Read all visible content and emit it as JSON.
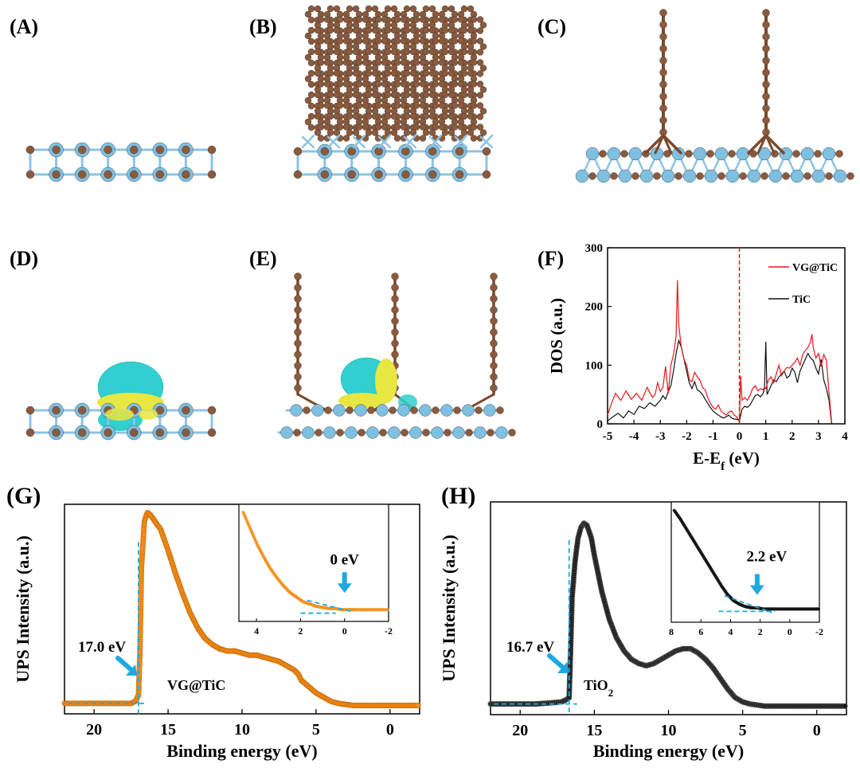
{
  "panels": {
    "A": {
      "label": "(A)"
    },
    "B": {
      "label": "(B)"
    },
    "C": {
      "label": "(C)"
    },
    "D": {
      "label": "(D)"
    },
    "E": {
      "label": "(E)"
    },
    "F": {
      "label": "(F)"
    },
    "G": {
      "label": "(G)"
    },
    "H": {
      "label": "(H)"
    }
  },
  "colors": {
    "carbon": "#8b5a3c",
    "titanium": "#7fbfe0",
    "bond_c": "#7a4a2c",
    "bond_ti": "#8cc3e6",
    "iso_cyan": "#31cfcf",
    "iso_yellow": "#e8e640",
    "red_line": "#e8161b",
    "black_line": "#111111",
    "orange": "#f7901e",
    "black_marker": "#151515",
    "cyan_dash": "#1ea8e0"
  },
  "chart_data": [
    {
      "panel": "F",
      "type": "line",
      "xlabel": "E-E",
      "xlabel_sub": "f",
      "xlabel_suffix": " (eV)",
      "ylabel": "DOS (a.u.)",
      "xlim": [
        -5,
        4
      ],
      "ylim": [
        0,
        300
      ],
      "xticks": [
        "-5",
        "-4",
        "-3",
        "-2",
        "-1",
        "0",
        "1",
        "2",
        "3",
        "4"
      ],
      "yticks": [
        "0",
        "100",
        "200",
        "300"
      ],
      "fermi_line_x": 0,
      "series": [
        {
          "name": "VG@TiC",
          "color": "#e8161b",
          "x": [
            -5,
            -4.85,
            -4.7,
            -4.5,
            -4.3,
            -4.1,
            -3.9,
            -3.7,
            -3.5,
            -3.3,
            -3.2,
            -3.1,
            -3.0,
            -2.9,
            -2.8,
            -2.7,
            -2.6,
            -2.5,
            -2.4,
            -2.35,
            -2.3,
            -2.25,
            -2.2,
            -2.1,
            -2.0,
            -1.9,
            -1.8,
            -1.7,
            -1.6,
            -1.5,
            -1.4,
            -1.3,
            -1.2,
            -1.1,
            -1.0,
            -0.9,
            -0.8,
            -0.7,
            -0.6,
            -0.5,
            -0.4,
            -0.3,
            -0.2,
            -0.1,
            0.0,
            0.05,
            0.1,
            0.2,
            0.3,
            0.4,
            0.5,
            0.6,
            0.7,
            0.8,
            0.9,
            0.95,
            1.0,
            1.1,
            1.2,
            1.3,
            1.4,
            1.5,
            1.6,
            1.7,
            1.8,
            1.9,
            2.0,
            2.1,
            2.2,
            2.3,
            2.4,
            2.5,
            2.6,
            2.7,
            2.75,
            2.8,
            2.9,
            3.0,
            3.1,
            3.2,
            3.3,
            3.4,
            3.5
          ],
          "y": [
            15,
            35,
            52,
            40,
            56,
            42,
            52,
            40,
            62,
            45,
            50,
            70,
            55,
            62,
            98,
            52,
            100,
            118,
            150,
            245,
            170,
            148,
            130,
            110,
            100,
            75,
            72,
            88,
            80,
            75,
            62,
            58,
            45,
            35,
            28,
            25,
            32,
            22,
            18,
            15,
            20,
            22,
            15,
            12,
            5,
            82,
            40,
            45,
            40,
            48,
            60,
            65,
            56,
            60,
            58,
            62,
            60,
            75,
            80,
            70,
            85,
            100,
            82,
            90,
            96,
            95,
            100,
            105,
            112,
            100,
            118,
            125,
            130,
            140,
            153,
            130,
            112,
            120,
            98,
            118,
            108,
            52,
            3
          ]
        },
        {
          "name": "TiC",
          "color": "#111111",
          "x": [
            -5,
            -4.8,
            -4.6,
            -4.4,
            -4.2,
            -4.0,
            -3.8,
            -3.6,
            -3.4,
            -3.2,
            -3.0,
            -2.9,
            -2.8,
            -2.7,
            -2.6,
            -2.5,
            -2.4,
            -2.3,
            -2.2,
            -2.1,
            -2.0,
            -1.9,
            -1.8,
            -1.7,
            -1.6,
            -1.5,
            -1.4,
            -1.3,
            -1.2,
            -1.1,
            -1.0,
            -0.9,
            -0.8,
            -0.7,
            -0.6,
            -0.5,
            -0.4,
            -0.3,
            -0.2,
            -0.1,
            0.0,
            0.1,
            0.2,
            0.3,
            0.4,
            0.5,
            0.6,
            0.7,
            0.8,
            0.9,
            0.95,
            1.0,
            1.05,
            1.1,
            1.2,
            1.3,
            1.4,
            1.5,
            1.6,
            1.7,
            1.8,
            1.9,
            2.0,
            2.1,
            2.2,
            2.3,
            2.4,
            2.5,
            2.6,
            2.7,
            2.8,
            2.9,
            3.0,
            3.1,
            3.2,
            3.3,
            3.4,
            3.5
          ],
          "y": [
            5,
            12,
            18,
            10,
            22,
            16,
            30,
            26,
            36,
            30,
            40,
            48,
            42,
            55,
            65,
            90,
            120,
            142,
            130,
            110,
            90,
            70,
            60,
            72,
            58,
            55,
            50,
            42,
            35,
            28,
            22,
            18,
            15,
            12,
            10,
            12,
            15,
            10,
            8,
            8,
            5,
            25,
            30,
            28,
            32,
            40,
            48,
            50,
            46,
            52,
            60,
            140,
            50,
            55,
            65,
            75,
            72,
            80,
            85,
            90,
            78,
            82,
            95,
            88,
            70,
            90,
            100,
            110,
            120,
            112,
            108,
            95,
            85,
            110,
            75,
            60,
            40,
            0
          ]
        }
      ],
      "legend": [
        "VG@TiC",
        "TiC"
      ]
    },
    {
      "panel": "G",
      "type": "scatter",
      "xlabel": "Binding energy (eV)",
      "ylabel": "UPS Intensity (a.u.)",
      "xlim": [
        22,
        -2
      ],
      "ylim": [
        0,
        1.0
      ],
      "xticks": [
        "20",
        "15",
        "10",
        "5",
        "0"
      ],
      "color": "#f7901e",
      "label": "VG@TiC",
      "cutoff_annotation": "17.0 eV",
      "cutoff_x": 17.0,
      "curve": {
        "x": [
          22,
          21,
          20,
          19,
          18,
          17.5,
          17.2,
          17.0,
          16.9,
          16.8,
          16.6,
          16.4,
          16.2,
          16.0,
          15.5,
          15.0,
          14.5,
          14.0,
          13.5,
          13.0,
          12.5,
          12.0,
          11.5,
          11.0,
          10.5,
          10.0,
          9.5,
          9.0,
          8.5,
          8.0,
          7.5,
          7.0,
          6.5,
          6.2,
          6.0,
          5.5,
          5.0,
          4.5,
          4.0,
          3.5,
          3.0,
          2.5,
          2.0,
          1.0,
          0.0,
          -1.0,
          -2.0
        ],
        "y": [
          0.05,
          0.05,
          0.05,
          0.05,
          0.05,
          0.05,
          0.06,
          0.09,
          0.3,
          0.7,
          0.92,
          0.96,
          0.95,
          0.93,
          0.88,
          0.78,
          0.67,
          0.57,
          0.48,
          0.41,
          0.36,
          0.33,
          0.31,
          0.3,
          0.3,
          0.29,
          0.28,
          0.28,
          0.27,
          0.26,
          0.25,
          0.23,
          0.21,
          0.19,
          0.16,
          0.13,
          0.1,
          0.08,
          0.06,
          0.05,
          0.045,
          0.04,
          0.04,
          0.04,
          0.04,
          0.04,
          0.04
        ]
      },
      "inset": {
        "annotation": "0 eV",
        "xlim": [
          4.8,
          -2
        ],
        "ylim": [
          0,
          1
        ],
        "xticks": [
          "4",
          "2",
          "0",
          "-2"
        ],
        "x": [
          4.6,
          4.3,
          4.0,
          3.7,
          3.4,
          3.1,
          2.8,
          2.5,
          2.2,
          1.9,
          1.6,
          1.3,
          1.0,
          0.7,
          0.4,
          0.1,
          -0.2,
          -0.5,
          -1.0,
          -1.5,
          -2.0
        ],
        "y": [
          0.93,
          0.8,
          0.67,
          0.56,
          0.46,
          0.38,
          0.31,
          0.25,
          0.21,
          0.17,
          0.15,
          0.13,
          0.12,
          0.11,
          0.11,
          0.1,
          0.1,
          0.1,
          0.1,
          0.1,
          0.1
        ]
      }
    },
    {
      "panel": "H",
      "type": "scatter",
      "xlabel": "Binding energy (eV)",
      "ylabel": "UPS Intensity (a.u.)",
      "xlim": [
        22,
        -2
      ],
      "ylim": [
        0,
        1.0
      ],
      "xticks": [
        "20",
        "15",
        "10",
        "5",
        "0"
      ],
      "color": "#151515",
      "label_main": "TiO",
      "label_sub": "2",
      "cutoff_annotation": "16.7 eV",
      "cutoff_x": 16.7,
      "curve": {
        "x": [
          22,
          21,
          20,
          19,
          18,
          17.2,
          16.9,
          16.7,
          16.6,
          16.5,
          16.3,
          16.1,
          15.9,
          15.7,
          15.5,
          15.2,
          15.0,
          14.5,
          14.0,
          13.5,
          13.0,
          12.5,
          12.0,
          11.5,
          11.0,
          10.5,
          10.0,
          9.5,
          9.0,
          8.5,
          8.0,
          7.5,
          7.0,
          6.5,
          6.0,
          5.5,
          5.0,
          4.5,
          4.0,
          3.5,
          3.0,
          2.0,
          1.0,
          0.0,
          -1.0,
          -2.0
        ],
        "y": [
          0.05,
          0.05,
          0.05,
          0.05,
          0.055,
          0.06,
          0.07,
          0.08,
          0.3,
          0.55,
          0.72,
          0.83,
          0.88,
          0.9,
          0.89,
          0.83,
          0.75,
          0.58,
          0.45,
          0.36,
          0.3,
          0.26,
          0.24,
          0.23,
          0.24,
          0.26,
          0.28,
          0.3,
          0.31,
          0.31,
          0.29,
          0.26,
          0.22,
          0.17,
          0.12,
          0.08,
          0.06,
          0.05,
          0.045,
          0.04,
          0.04,
          0.04,
          0.04,
          0.04,
          0.04,
          0.04
        ]
      },
      "inset": {
        "annotation": "2.2 eV",
        "xlim": [
          8,
          -2
        ],
        "ylim": [
          0,
          1
        ],
        "xticks": [
          "8",
          "6",
          "4",
          "2",
          "0",
          "-2"
        ],
        "x": [
          7.8,
          7.4,
          7.0,
          6.6,
          6.2,
          5.8,
          5.4,
          5.0,
          4.6,
          4.2,
          3.8,
          3.4,
          3.0,
          2.6,
          2.2,
          1.8,
          1.4,
          1.0,
          0.5,
          0.0,
          -0.5,
          -1.0,
          -1.5,
          -2.0
        ],
        "y": [
          0.93,
          0.86,
          0.78,
          0.7,
          0.62,
          0.54,
          0.46,
          0.38,
          0.3,
          0.23,
          0.18,
          0.15,
          0.13,
          0.12,
          0.12,
          0.11,
          0.11,
          0.11,
          0.11,
          0.11,
          0.11,
          0.11,
          0.11,
          0.11
        ]
      }
    }
  ]
}
